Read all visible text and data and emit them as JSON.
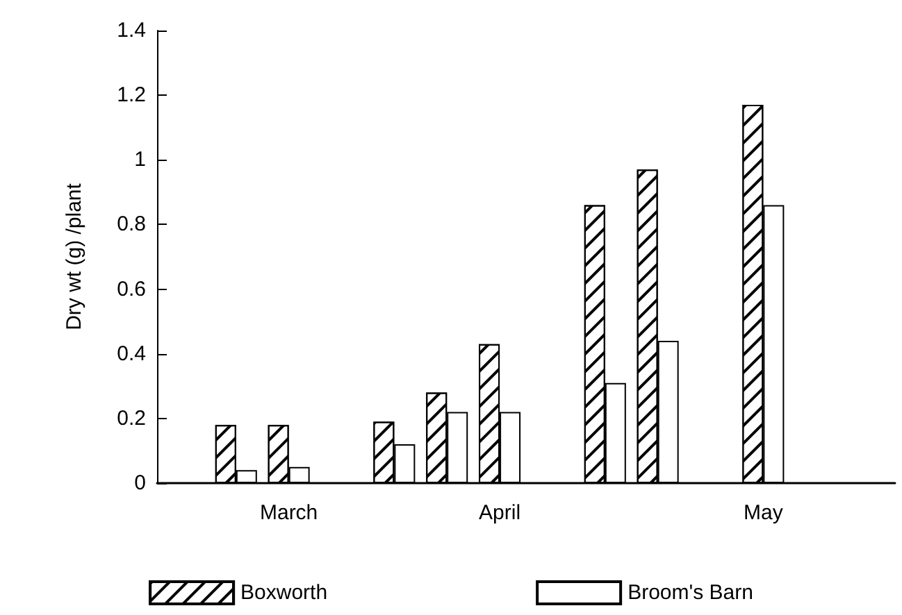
{
  "chart_data": {
    "type": "bar",
    "ylabel": "Dry wt (g) /plant",
    "categories": [
      null,
      null,
      "March",
      null,
      null,
      null,
      "April",
      null,
      null,
      null,
      null,
      "May",
      null,
      null
    ],
    "series": [
      {
        "name": "Boxworth",
        "color": "#ffffff",
        "values": [
          null,
          0.18,
          0.18,
          null,
          0.19,
          0.28,
          0.43,
          null,
          0.86,
          0.97,
          null,
          1.17,
          null,
          null
        ]
      },
      {
        "name": "Broom's Barn",
        "color": "#ffffff",
        "values": [
          null,
          0.04,
          0.05,
          null,
          0.12,
          0.22,
          0.22,
          null,
          0.31,
          0.44,
          null,
          0.86,
          null,
          null
        ]
      }
    ],
    "ylim": [
      0,
      1.4
    ],
    "yticks": [
      0,
      0.2,
      0.4,
      0.6,
      0.8,
      1,
      1.2,
      1.4
    ],
    "grid": false,
    "legend": "bottom"
  }
}
